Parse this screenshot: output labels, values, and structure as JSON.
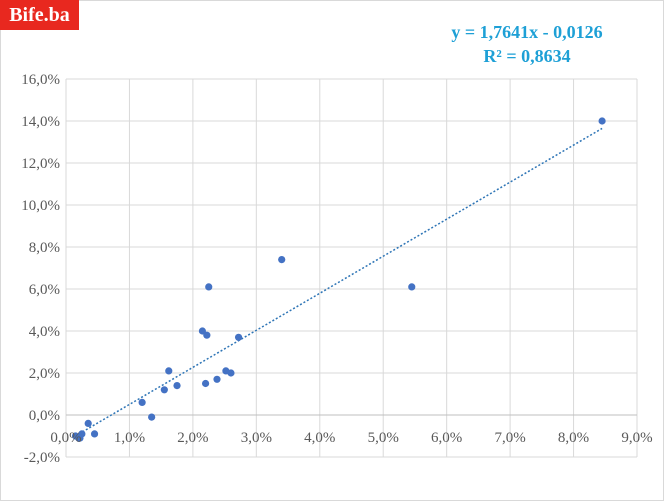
{
  "branding": {
    "logo_text": "Bife.ba",
    "logo_color": "#e8281f"
  },
  "trendline": {
    "equation": "y = 1,7641x - 0,0126",
    "r_squared": "R² = 0,8634",
    "slope": 1.7641,
    "intercept": -0.0126,
    "color": "#2e75b6",
    "style": "dotted"
  },
  "chart_data": {
    "type": "scatter",
    "title": "",
    "xlabel": "",
    "ylabel": "",
    "xlim": [
      0,
      0.09
    ],
    "ylim": [
      -0.02,
      0.16
    ],
    "x_ticks": [
      0,
      0.01,
      0.02,
      0.03,
      0.04,
      0.05,
      0.06,
      0.07,
      0.08,
      0.09
    ],
    "x_tick_labels": [
      "0,0%",
      "1,0%",
      "2,0%",
      "3,0%",
      "4,0%",
      "5,0%",
      "6,0%",
      "7,0%",
      "8,0%",
      "9,0%"
    ],
    "y_ticks": [
      -0.02,
      0,
      0.02,
      0.04,
      0.06,
      0.08,
      0.1,
      0.12,
      0.14,
      0.16
    ],
    "y_tick_labels": [
      "-2,0%",
      "0,0%",
      "2,0%",
      "4,0%",
      "6,0%",
      "8,0%",
      "10,0%",
      "12,0%",
      "14,0%",
      "16,0%"
    ],
    "grid": true,
    "marker_color": "#4472c4",
    "points": [
      {
        "x": 0.0015,
        "y": -0.01
      },
      {
        "x": 0.002,
        "y": -0.011
      },
      {
        "x": 0.0022,
        "y": -0.011
      },
      {
        "x": 0.0025,
        "y": -0.009
      },
      {
        "x": 0.0035,
        "y": -0.004
      },
      {
        "x": 0.0045,
        "y": -0.009
      },
      {
        "x": 0.012,
        "y": 0.006
      },
      {
        "x": 0.0135,
        "y": -0.001
      },
      {
        "x": 0.0155,
        "y": 0.012
      },
      {
        "x": 0.0162,
        "y": 0.021
      },
      {
        "x": 0.0175,
        "y": 0.014
      },
      {
        "x": 0.0215,
        "y": 0.04
      },
      {
        "x": 0.022,
        "y": 0.015
      },
      {
        "x": 0.0222,
        "y": 0.038
      },
      {
        "x": 0.0225,
        "y": 0.061
      },
      {
        "x": 0.0238,
        "y": 0.017
      },
      {
        "x": 0.0252,
        "y": 0.021
      },
      {
        "x": 0.026,
        "y": 0.02
      },
      {
        "x": 0.0272,
        "y": 0.037
      },
      {
        "x": 0.034,
        "y": 0.074
      },
      {
        "x": 0.0545,
        "y": 0.061
      },
      {
        "x": 0.0845,
        "y": 0.14
      }
    ]
  }
}
